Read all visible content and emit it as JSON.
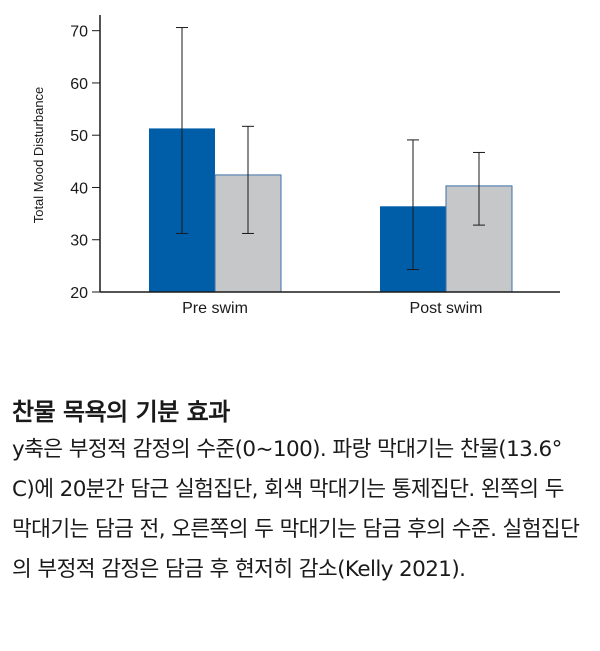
{
  "chart_data": {
    "type": "bar",
    "ylabel": "Total Mood Disturbance",
    "xlabel": "",
    "ylim": [
      20,
      73
    ],
    "yticks": [
      20,
      30,
      40,
      50,
      60,
      70
    ],
    "categories": [
      "Pre swim",
      "Post swim"
    ],
    "series": [
      {
        "name": "찬물 실험집단",
        "color": "#005ea8",
        "values": [
          51.3,
          36.4
        ],
        "err_low": [
          31.2,
          24.3
        ],
        "err_high": [
          70.6,
          49.1
        ]
      },
      {
        "name": "통제집단",
        "color": "#c6c7c9",
        "values": [
          42.4,
          40.3
        ],
        "err_low": [
          31.2,
          32.8
        ],
        "err_high": [
          51.7,
          46.7
        ]
      }
    ]
  },
  "caption": {
    "title": "찬물 목욕의 기분 효과",
    "body": "y축은 부정적 감정의 수준(0~100). 파랑 막대기는 찬물(13.6° C)에 20분간 담근 실험집단, 회색 막대기는 통제집단. 왼쪽의 두 막대기는 담금 전, 오른쪽의 두 막대기는 담금 후의 수준. 실험집단의 부정적 감정은 담금 후 현저히 감소(Kelly 2021)."
  }
}
